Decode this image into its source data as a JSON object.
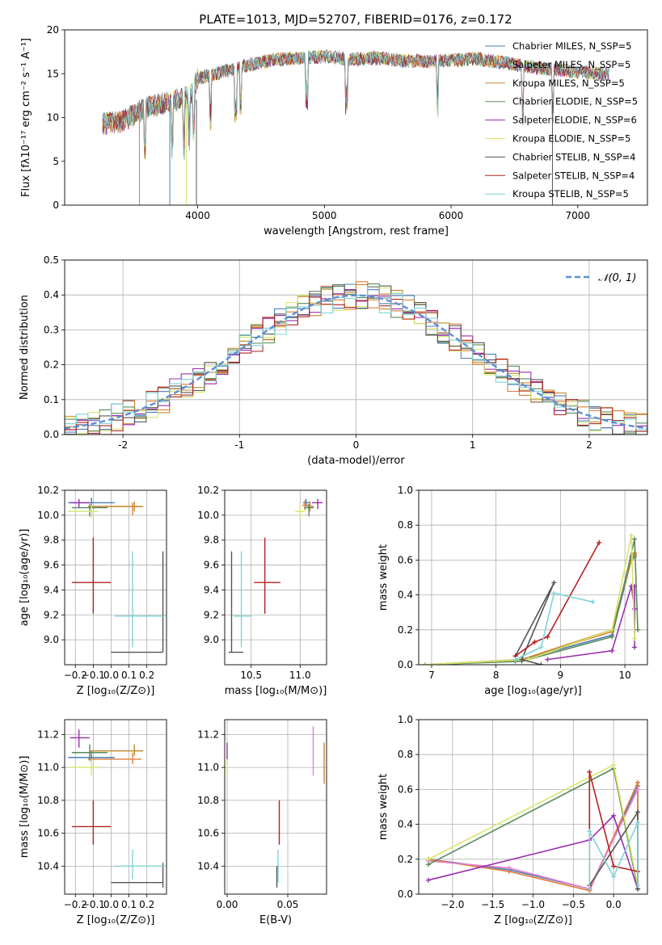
{
  "figure_title": "PLATE=1013, MJD=52707, FIBERID=0176, z=0.172",
  "palette": [
    "#4a7fb5",
    "#e07b39",
    "#c28a2f",
    "#5a8a5a",
    "#9b2fae",
    "#d6e86a",
    "#555555",
    "#b22222",
    "#7fd3d8"
  ],
  "chart_data": [
    {
      "type": "line",
      "id": "spectrum",
      "title": "PLATE=1013, MJD=52707, FIBERID=0176, z=0.172",
      "xlabel": "wavelength [Angstrom, rest frame]",
      "ylabel": "Flux [fλ10⁻¹⁷ erg cm⁻² s⁻¹ A⁻¹]",
      "xlim": [
        2950,
        7550
      ],
      "ylim": [
        0,
        20
      ],
      "xticks": [
        4000,
        5000,
        6000,
        7000
      ],
      "yticks": [
        0,
        5,
        10,
        15,
        20
      ],
      "legend_position": "top-right",
      "spectrum_anchor_points": [
        [
          3250,
          9.3
        ],
        [
          3400,
          9.5
        ],
        [
          3600,
          11.2
        ],
        [
          3800,
          11.8
        ],
        [
          3950,
          12.5
        ],
        [
          4000,
          14.5
        ],
        [
          4200,
          15.2
        ],
        [
          4400,
          16.0
        ],
        [
          4600,
          16.6
        ],
        [
          4800,
          16.8
        ],
        [
          5000,
          17.0
        ],
        [
          5200,
          16.6
        ],
        [
          5400,
          16.8
        ],
        [
          5600,
          16.5
        ],
        [
          5800,
          16.4
        ],
        [
          6000,
          16.5
        ],
        [
          6200,
          16.7
        ],
        [
          6400,
          16.3
        ],
        [
          6600,
          15.8
        ],
        [
          6800,
          15.5
        ],
        [
          7000,
          15.2
        ],
        [
          7250,
          15.0
        ]
      ],
      "series": [
        {
          "name": "Chabrier MILES, N_SSP=5",
          "color": "#4a7fb5"
        },
        {
          "name": "Salpeter MILES, N_SSP=5",
          "color": "#e07b39"
        },
        {
          "name": "Kroupa MILES, N_SSP=5",
          "color": "#c28a2f"
        },
        {
          "name": "Chabrier ELODIE, N_SSP=5",
          "color": "#5a8a5a"
        },
        {
          "name": "Salpeter ELODIE, N_SSP=6",
          "color": "#9b2fae"
        },
        {
          "name": "Kroupa ELODIE, N_SSP=5",
          "color": "#d6e86a"
        },
        {
          "name": "Chabrier STELIB, N_SSP=4",
          "color": "#555555"
        },
        {
          "name": "Salpeter STELIB, N_SSP=4",
          "color": "#b22222"
        },
        {
          "name": "Kroupa STELIB, N_SSP=5",
          "color": "#7fd3d8"
        }
      ]
    },
    {
      "type": "histogram",
      "id": "residuals",
      "xlabel": "(data-model)/error",
      "ylabel": "Normed distribution",
      "xlim": [
        -2.5,
        2.5
      ],
      "ylim": [
        0,
        0.5
      ],
      "xticks": [
        -2,
        -1,
        0,
        1,
        2
      ],
      "yticks": [
        0.0,
        0.1,
        0.2,
        0.3,
        0.4,
        0.5
      ],
      "grid": true,
      "legend": "𝒩(0, 1)",
      "legend_position": "top-right",
      "bin_width": 0.1,
      "reference_curve": "normal(0,1)"
    },
    {
      "type": "scatter",
      "id": "age_vs_Z",
      "xlabel": "Z [log₁₀(Z/Z⊙)]",
      "ylabel": "age  [log₁₀(age/yr)]",
      "xlim": [
        -0.26,
        0.31
      ],
      "ylim": [
        8.8,
        10.2
      ],
      "xticks": [
        -0.2,
        -0.1,
        0.0,
        0.1,
        0.2
      ],
      "yticks": [
        9.0,
        9.2,
        9.4,
        9.6,
        9.8,
        10.0,
        10.2
      ],
      "grid": true,
      "points": [
        {
          "x": -0.11,
          "y": 10.1,
          "ex": [
            0.13,
            0.13
          ],
          "ey": [
            0.04,
            0.04
          ],
          "color": "#4a7fb5"
        },
        {
          "x": 0.12,
          "y": 10.07,
          "ex": [
            0.25,
            0.05
          ],
          "ey": [
            0.07,
            0.03
          ],
          "color": "#e07b39"
        },
        {
          "x": 0.13,
          "y": 10.07,
          "ex": [
            0.25,
            0.05
          ],
          "ey": [
            0.04,
            0.04
          ],
          "color": "#c28a2f"
        },
        {
          "x": -0.12,
          "y": 10.06,
          "ex": [
            0.1,
            0.1
          ],
          "ey": [
            0.07,
            0.03
          ],
          "color": "#5a8a5a"
        },
        {
          "x": -0.18,
          "y": 10.1,
          "ex": [
            0.05,
            0.06
          ],
          "ey": [
            0.04,
            0.03
          ],
          "color": "#9b2fae"
        },
        {
          "x": -0.11,
          "y": 10.03,
          "ex": [
            0.13,
            0.04
          ],
          "ey": [
            0.05,
            0.05
          ],
          "color": "#d6e86a"
        },
        {
          "x": 0.29,
          "y": 8.9,
          "ex": [
            0.29,
            0.0
          ],
          "ey": [
            0.0,
            0.81
          ],
          "color": "#555555"
        },
        {
          "x": -0.1,
          "y": 9.46,
          "ex": [
            0.12,
            0.1
          ],
          "ey": [
            0.25,
            0.36
          ],
          "color": "#b22222"
        },
        {
          "x": 0.12,
          "y": 9.19,
          "ex": [
            0.1,
            0.18
          ],
          "ey": [
            0.25,
            0.52
          ],
          "color": "#7fd3d8"
        }
      ]
    },
    {
      "type": "scatter",
      "id": "age_vs_mass",
      "xlabel": "mass [log₁₀(M/M⊙)]",
      "xlim": [
        10.23,
        11.27
      ],
      "ylim": [
        8.8,
        10.2
      ],
      "xticks": [
        10.5,
        11.0
      ],
      "yticks": [
        9.0,
        9.2,
        9.4,
        9.6,
        9.8,
        10.0,
        10.2
      ],
      "grid": true,
      "points": [
        {
          "x": 11.06,
          "y": 10.1,
          "ex": [
            0.03,
            0.04
          ],
          "ey": [
            0.03,
            0.03
          ],
          "color": "#4a7fb5"
        },
        {
          "x": 11.05,
          "y": 10.08,
          "ex": [
            0.03,
            0.04
          ],
          "ey": [
            0.04,
            0.04
          ],
          "color": "#e07b39"
        },
        {
          "x": 11.1,
          "y": 10.07,
          "ex": [
            0.03,
            0.04
          ],
          "ey": [
            0.04,
            0.04
          ],
          "color": "#c28a2f"
        },
        {
          "x": 11.09,
          "y": 10.06,
          "ex": [
            0.05,
            0.05
          ],
          "ey": [
            0.07,
            0.03
          ],
          "color": "#5a8a5a"
        },
        {
          "x": 11.18,
          "y": 10.1,
          "ex": [
            0.06,
            0.05
          ],
          "ey": [
            0.05,
            0.03
          ],
          "color": "#9b2fae"
        },
        {
          "x": 11.0,
          "y": 10.03,
          "ex": [
            0.05,
            0.05
          ],
          "ey": [
            0.05,
            0.05
          ],
          "color": "#d6e86a"
        },
        {
          "x": 10.3,
          "y": 8.9,
          "ex": [
            0.03,
            0.12
          ],
          "ey": [
            0.0,
            0.81
          ],
          "color": "#555555"
        },
        {
          "x": 10.64,
          "y": 9.46,
          "ex": [
            0.11,
            0.16
          ],
          "ey": [
            0.25,
            0.36
          ],
          "color": "#b22222"
        },
        {
          "x": 10.4,
          "y": 9.19,
          "ex": [
            0.08,
            0.1
          ],
          "ey": [
            0.25,
            0.52
          ],
          "color": "#7fd3d8"
        }
      ]
    },
    {
      "type": "line",
      "id": "massweight_vs_age",
      "xlabel": "age  [log₁₀(age/yr)]",
      "ylabel": "mass weight",
      "xlim": [
        6.8,
        10.35
      ],
      "ylim": [
        0,
        1.0
      ],
      "xticks": [
        7,
        8,
        9,
        10
      ],
      "yticks": [
        0.0,
        0.2,
        0.4,
        0.6,
        0.8,
        1.0
      ],
      "grid": true,
      "series": [
        {
          "color": "#4a7fb5",
          "x": [
            6.9,
            8.3,
            9.8,
            10.1,
            10.15
          ],
          "y": [
            0.0,
            0.02,
            0.17,
            0.6,
            0.62
          ]
        },
        {
          "color": "#e07b39",
          "x": [
            6.9,
            8.4,
            9.8,
            10.1,
            10.15
          ],
          "y": [
            0.0,
            0.03,
            0.19,
            0.62,
            0.64
          ]
        },
        {
          "color": "#c28a2f",
          "x": [
            6.9,
            8.4,
            9.8,
            10.1,
            10.15
          ],
          "y": [
            0.0,
            0.03,
            0.2,
            0.6,
            0.63
          ]
        },
        {
          "color": "#5a8a5a",
          "x": [
            6.9,
            8.4,
            9.8,
            10.15,
            10.2
          ],
          "y": [
            0.0,
            0.02,
            0.16,
            0.72,
            0.2
          ]
        },
        {
          "color": "#9b2fae",
          "x": [
            8.8,
            9.8,
            10.1,
            10.15,
            10.15,
            10.15
          ],
          "y": [
            0.03,
            0.08,
            0.45,
            0.32,
            0.1,
            0.45
          ]
        },
        {
          "color": "#d6e86a",
          "x": [
            6.9,
            8.5,
            9.8,
            10.1,
            10.15
          ],
          "y": [
            0.0,
            0.03,
            0.2,
            0.74,
            0.15
          ]
        },
        {
          "color": "#555555",
          "x": [
            8.3,
            8.9,
            8.4,
            8.7
          ],
          "y": [
            0.05,
            0.47,
            0.03,
            0.0
          ]
        },
        {
          "color": "#b22222",
          "x": [
            8.3,
            8.6,
            8.8,
            9.6
          ],
          "y": [
            0.05,
            0.13,
            0.16,
            0.7
          ]
        },
        {
          "color": "#7fd3d8",
          "x": [
            8.3,
            8.7,
            8.9,
            9.5
          ],
          "y": [
            0.03,
            0.1,
            0.41,
            0.36
          ]
        }
      ]
    },
    {
      "type": "scatter",
      "id": "mass_vs_Z",
      "xlabel": "Z [log₁₀(Z/Z⊙)]",
      "ylabel": "mass [log₁₀(M/M⊙)]",
      "xlim": [
        -0.26,
        0.31
      ],
      "ylim": [
        10.23,
        11.29
      ],
      "xticks": [
        -0.2,
        -0.1,
        0.0,
        0.1,
        0.2
      ],
      "yticks": [
        10.4,
        10.6,
        10.8,
        11.0,
        11.2
      ],
      "grid": true,
      "points": [
        {
          "x": -0.11,
          "y": 11.06,
          "ex": [
            0.13,
            0.13
          ],
          "ey": [
            0.03,
            0.04
          ],
          "color": "#4a7fb5"
        },
        {
          "x": 0.12,
          "y": 11.05,
          "ex": [
            0.25,
            0.05
          ],
          "ey": [
            0.03,
            0.04
          ],
          "color": "#e07b39"
        },
        {
          "x": 0.13,
          "y": 11.1,
          "ex": [
            0.25,
            0.05
          ],
          "ey": [
            0.03,
            0.04
          ],
          "color": "#c28a2f"
        },
        {
          "x": -0.12,
          "y": 11.09,
          "ex": [
            0.1,
            0.1
          ],
          "ey": [
            0.05,
            0.05
          ],
          "color": "#5a8a5a"
        },
        {
          "x": -0.18,
          "y": 11.18,
          "ex": [
            0.05,
            0.06
          ],
          "ey": [
            0.06,
            0.05
          ],
          "color": "#9b2fae"
        },
        {
          "x": -0.11,
          "y": 11.0,
          "ex": [
            0.13,
            0.04
          ],
          "ey": [
            0.05,
            0.05
          ],
          "color": "#d6e86a"
        },
        {
          "x": 0.29,
          "y": 10.3,
          "ex": [
            0.29,
            0.0
          ],
          "ey": [
            0.03,
            0.12
          ],
          "color": "#555555"
        },
        {
          "x": -0.1,
          "y": 10.64,
          "ex": [
            0.12,
            0.1
          ],
          "ey": [
            0.11,
            0.16
          ],
          "color": "#b22222"
        },
        {
          "x": 0.12,
          "y": 10.4,
          "ex": [
            0.1,
            0.18
          ],
          "ey": [
            0.08,
            0.1
          ],
          "color": "#7fd3d8"
        }
      ]
    },
    {
      "type": "scatter",
      "id": "mass_vs_EBV",
      "xlabel": "E(B-V)",
      "xlim": [
        -0.002,
        0.082
      ],
      "ylim": [
        10.23,
        11.29
      ],
      "xticks": [
        0.0,
        0.05
      ],
      "yticks": [
        10.4,
        10.6,
        10.8,
        11.0,
        11.2
      ],
      "grid": true,
      "points": [
        {
          "x": 0.0,
          "y": 11.1,
          "ey": [
            0.05,
            0.05
          ],
          "color": "#9b2fae"
        },
        {
          "x": 0.0,
          "y": 11.0,
          "ey": [
            0.05,
            0.05
          ],
          "color": "#d6e86a"
        },
        {
          "x": 0.042,
          "y": 10.4,
          "ey": [
            0.1,
            0.1
          ],
          "color": "#7fd3d8"
        },
        {
          "x": 0.041,
          "y": 10.3,
          "ey": [
            0.03,
            0.1
          ],
          "color": "#555555"
        },
        {
          "x": 0.043,
          "y": 10.64,
          "ey": [
            0.11,
            0.16
          ],
          "color": "#b22222"
        },
        {
          "x": 0.071,
          "y": 11.1,
          "ey": [
            0.15,
            0.15
          ],
          "color": "#e87fcf"
        },
        {
          "x": 0.08,
          "y": 11.0,
          "ey": [
            0.1,
            0.15
          ],
          "color": "#c28a2f"
        }
      ]
    },
    {
      "type": "line",
      "id": "massweight_vs_Z",
      "xlabel": "Z [log₁₀(Z/Z⊙)]",
      "ylabel": "mass weight",
      "xlim": [
        -2.42,
        0.42
      ],
      "ylim": [
        0,
        1.0
      ],
      "xticks": [
        -2.0,
        -1.5,
        -1.0,
        -0.5,
        0.0
      ],
      "yticks": [
        0.0,
        0.2,
        0.4,
        0.6,
        0.8,
        1.0
      ],
      "grid": true,
      "series": [
        {
          "color": "#4a7fb5",
          "x": [
            -2.3,
            -1.3,
            -0.3,
            0.3,
            0.3
          ],
          "y": [
            0.2,
            0.14,
            0.03,
            0.62,
            0.05
          ]
        },
        {
          "color": "#e07b39",
          "x": [
            -2.3,
            -1.3,
            -0.3,
            0.3,
            0.3
          ],
          "y": [
            0.2,
            0.13,
            0.02,
            0.64,
            0.05
          ]
        },
        {
          "color": "#e87fcf",
          "x": [
            -2.3,
            -1.3,
            -0.3,
            0.3
          ],
          "y": [
            0.19,
            0.15,
            0.03,
            0.6
          ]
        },
        {
          "color": "#5a8a5a",
          "x": [
            -2.3,
            0.0,
            0.3
          ],
          "y": [
            0.17,
            0.72,
            0.03
          ]
        },
        {
          "color": "#9b2fae",
          "x": [
            -2.3,
            -0.3,
            0.0,
            0.3
          ],
          "y": [
            0.08,
            0.31,
            0.45,
            0.03
          ]
        },
        {
          "color": "#d6e86a",
          "x": [
            -2.3,
            0.0,
            0.3
          ],
          "y": [
            0.2,
            0.74,
            0.05
          ]
        },
        {
          "color": "#555555",
          "x": [
            -0.3,
            0.3,
            0.3
          ],
          "y": [
            0.05,
            0.47,
            0.03
          ]
        },
        {
          "color": "#b22222",
          "x": [
            -0.3,
            -0.3,
            0.0,
            0.3
          ],
          "y": [
            0.03,
            0.7,
            0.16,
            0.13
          ]
        },
        {
          "color": "#7fd3d8",
          "x": [
            -0.3,
            -0.3,
            0.0,
            0.3,
            0.3
          ],
          "y": [
            0.03,
            0.36,
            0.1,
            0.41,
            0.05
          ]
        }
      ]
    }
  ]
}
